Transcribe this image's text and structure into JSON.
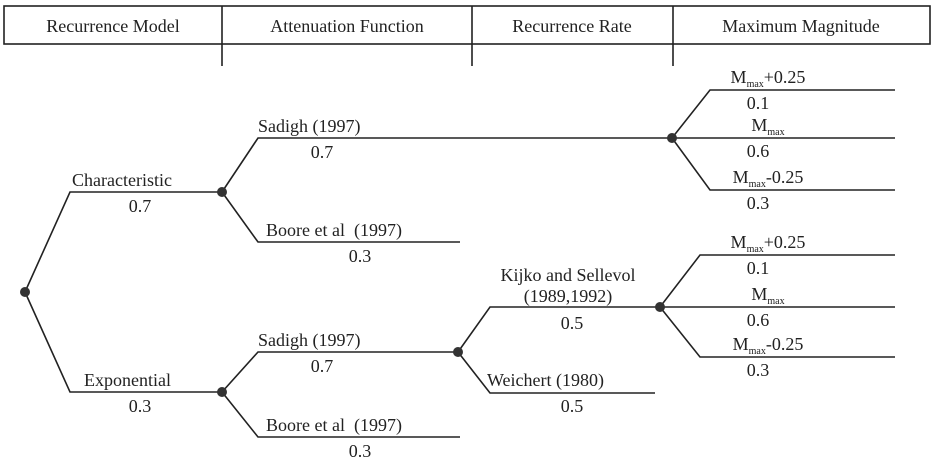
{
  "header": [
    "Recurrence Model",
    "Attenuation Function",
    "Recurrence Rate",
    "Maximum Magnitude"
  ],
  "recurrence_models": [
    {
      "label": "Characteristic",
      "weight": 0.7
    },
    {
      "label": "Exponential",
      "weight": 0.3
    }
  ],
  "attenuation_functions": [
    {
      "label": "Sadigh (1997)",
      "weight": 0.7
    },
    {
      "label": "Boore et al  (1997)",
      "weight": 0.3
    },
    {
      "label": "Sadigh (1997)",
      "weight": 0.7
    },
    {
      "label": "Boore et al  (1997)",
      "weight": 0.3
    }
  ],
  "recurrence_rates": [
    {
      "label": [
        "Kijko and Sellevol",
        "(1989,1992)"
      ],
      "weight": 0.5
    },
    {
      "label": [
        "Weichert (1980)"
      ],
      "weight": 0.5
    }
  ],
  "magnitudes": [
    {
      "symbol": "M",
      "subscript": "max",
      "suffix": "+0.25",
      "weight": 0.1
    },
    {
      "symbol": "M",
      "subscript": "max",
      "suffix": "",
      "weight": 0.6
    },
    {
      "symbol": "M",
      "subscript": "max",
      "suffix": "-0.25",
      "weight": 0.3
    },
    {
      "symbol": "M",
      "subscript": "max",
      "suffix": "+0.25",
      "weight": 0.1
    },
    {
      "symbol": "M",
      "subscript": "max",
      "suffix": "",
      "weight": 0.6
    },
    {
      "symbol": "M",
      "subscript": "max",
      "suffix": "-0.25",
      "weight": 0.3
    }
  ]
}
